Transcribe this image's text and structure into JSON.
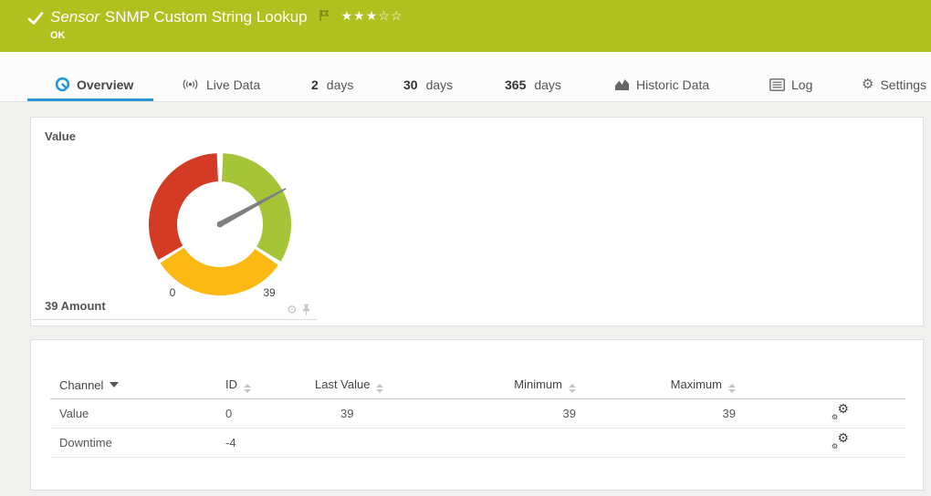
{
  "header": {
    "kind_label": "Sensor",
    "title": "SNMP Custom String Lookup",
    "status_text": "OK",
    "rating_stars": "★★★☆☆",
    "rating_filled": 3,
    "rating_total": 5,
    "bg_color": "#b2c01f"
  },
  "tabs": [
    {
      "label": "Overview",
      "icon": "gauge-icon",
      "active": true
    },
    {
      "label": "Live Data",
      "icon": "live-data-icon",
      "active": false
    },
    {
      "number": "2",
      "label": "days",
      "active": false
    },
    {
      "number": "30",
      "label": "days",
      "active": false
    },
    {
      "number": "365",
      "label": "days",
      "active": false
    },
    {
      "label": "Historic Data",
      "icon": "area-chart-icon",
      "active": false
    },
    {
      "label": "Log",
      "icon": "log-icon",
      "active": false
    },
    {
      "label": "Settings",
      "icon": "gear-icon",
      "active": false
    }
  ],
  "chart_data": {
    "type": "gauge",
    "title": "Value",
    "channel": "Amount",
    "current_value": 39,
    "footer_label": "39 Amount",
    "scale_start_label": "0",
    "scale_end_label": "39",
    "needle_angle_deg_cw_from_top": 61.5,
    "needle_color": "#7f7f7f",
    "outer_radius": 78,
    "inner_radius": 47,
    "segments": [
      {
        "name": "error-red",
        "color": "#d43b24",
        "start_deg": 240.0,
        "end_deg": 357.5
      },
      {
        "name": "warning-yellow",
        "color": "#fcb813",
        "start_deg": 125.0,
        "end_deg": 237.0
      },
      {
        "name": "ok-green",
        "color": "#a6c437",
        "start_deg": 2.5,
        "end_deg": 121.5
      }
    ]
  },
  "table": {
    "columns": [
      {
        "label": "Channel",
        "sort": "desc"
      },
      {
        "label": "ID",
        "sort": "both"
      },
      {
        "label": "Last Value",
        "sort": "both"
      },
      {
        "label": "Minimum",
        "sort": "both"
      },
      {
        "label": "Maximum",
        "sort": "both"
      }
    ],
    "rows": [
      {
        "channel": "Value",
        "id": "0",
        "last_value": "39",
        "minimum": "39",
        "maximum": "39"
      },
      {
        "channel": "Downtime",
        "id": "-4",
        "last_value": "",
        "minimum": "",
        "maximum": ""
      }
    ]
  },
  "colors": {
    "header_bg": "#b2c01f",
    "accent_blue": "#2697d0",
    "tab_icon_blue": "#1f9ad7",
    "gauge_red": "#d43b24",
    "gauge_yellow": "#fcb813",
    "gauge_green": "#a6c437",
    "content_bg": "#f0f0ef"
  }
}
